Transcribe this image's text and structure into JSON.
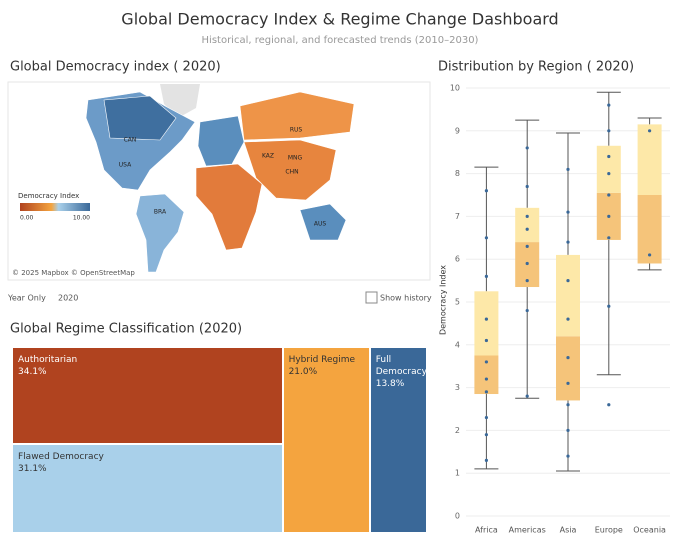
{
  "header": {
    "title": "Global Democracy Index & Regime Change Dashboard",
    "subtitle": "Historical, regional, and forecasted trends (2010–2030)"
  },
  "map": {
    "title": "Global Democracy index ( 2020)",
    "legend_title": "Democracy Index",
    "legend_min": "0.00",
    "legend_max": "10.00",
    "attribution": "© 2025 Mapbox © OpenStreetMap",
    "labels": [
      "CAN",
      "USA",
      "BRA",
      "RUS",
      "KAZ",
      "MNG",
      "CHN",
      "AUS"
    ]
  },
  "controls": {
    "year_label": "Year Only",
    "year": "2020",
    "checkbox": "Show history"
  },
  "chart_data": [
    {
      "type": "treemap",
      "title": "Global Regime Classification  (2020)",
      "categories": [
        "Authoritarian",
        "Flawed Democracy",
        "Hybrid Regime",
        "Full Democracy"
      ],
      "values": [
        34.1,
        31.1,
        21.0,
        13.8
      ],
      "value_labels": [
        "34.1%",
        "31.1%",
        "21.0%",
        "13.8%"
      ],
      "colors": [
        "#b0431f",
        "#a9d0ea",
        "#f4a43f",
        "#3a6898"
      ]
    },
    {
      "type": "box",
      "title": "Distribution by Region ( 2020)",
      "ylabel": "Democracy Index",
      "categories": [
        "Africa",
        "Americas",
        "Asia",
        "Europe",
        "Oceania"
      ],
      "low": [
        1.1,
        2.75,
        1.05,
        3.3,
        5.75
      ],
      "q1": [
        2.85,
        5.35,
        2.7,
        6.45,
        5.9
      ],
      "median": [
        3.75,
        6.4,
        4.2,
        7.55,
        7.5
      ],
      "q3": [
        5.25,
        7.2,
        6.1,
        8.65,
        9.15
      ],
      "high": [
        8.15,
        9.25,
        8.95,
        9.9,
        9.3
      ],
      "points": [
        [
          1.3,
          1.9,
          2.3,
          2.9,
          3.2,
          3.6,
          4.1,
          4.6,
          5.6,
          6.5,
          7.6
        ],
        [
          2.8,
          4.8,
          5.5,
          5.9,
          6.3,
          6.7,
          7.0,
          7.7,
          8.6
        ],
        [
          1.4,
          2.0,
          2.6,
          3.1,
          3.7,
          4.6,
          5.5,
          6.4,
          7.1,
          8.1
        ],
        [
          2.6,
          4.9,
          6.5,
          7.0,
          7.5,
          8.0,
          8.4,
          9.0,
          9.6
        ],
        [
          6.1,
          9.0
        ]
      ],
      "ylim": [
        0,
        10
      ],
      "yticks": [
        0,
        1,
        2,
        3,
        4,
        5,
        6,
        7,
        8,
        9,
        10
      ],
      "grid": true,
      "colors": {
        "upper": "#fde8a8",
        "lower": "#f5c47a",
        "whisker": "#555555",
        "point": "#3a6898"
      }
    }
  ]
}
